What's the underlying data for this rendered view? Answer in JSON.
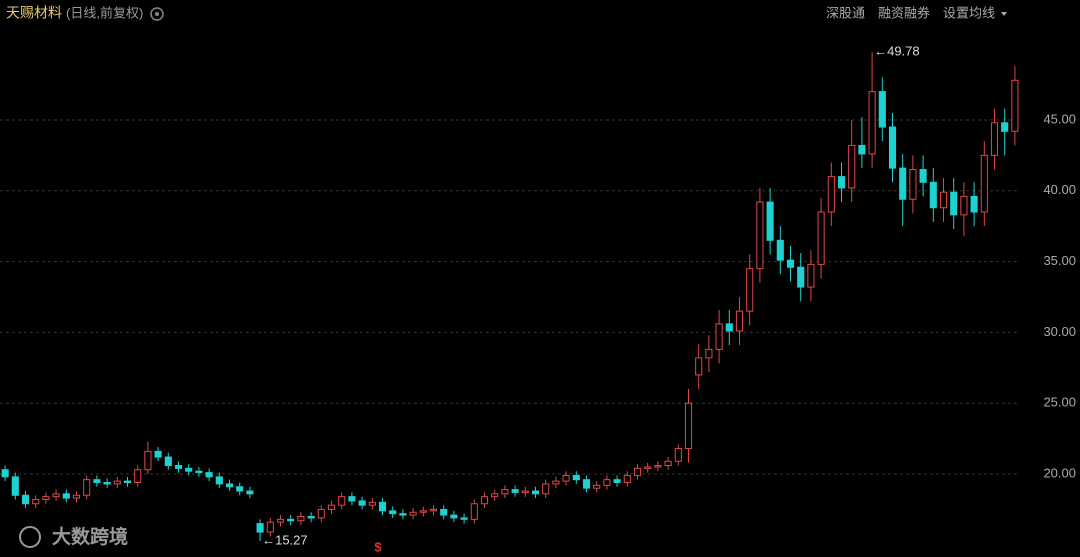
{
  "header": {
    "title": "天赐材料",
    "subtitle": "(日线,前复权)",
    "menu": [
      "深股通",
      "融资融券",
      "设置均线"
    ]
  },
  "watermark": "大数跨境",
  "bottom_marker": "$",
  "chart_data": {
    "type": "candlestick",
    "up_color": "#e04848",
    "down_color": "#1fd1d1",
    "ylim": [
      14.14,
      53.47
    ],
    "yticks": [
      {
        "value": 20,
        "label": "20.00"
      },
      {
        "value": 25,
        "label": "25.00"
      },
      {
        "value": 30,
        "label": "30.00"
      },
      {
        "value": 35,
        "label": "35.00"
      },
      {
        "value": 40,
        "label": "40.00"
      },
      {
        "value": 45,
        "label": "45.00"
      }
    ],
    "grid": true,
    "max_label": "←49.78",
    "min_label": "←15.27",
    "open": [
      20.3,
      19.8,
      18.5,
      17.9,
      18.2,
      18.4,
      18.6,
      18.3,
      18.5,
      19.6,
      19.4,
      19.3,
      19.5,
      19.4,
      20.3,
      21.6,
      21.2,
      20.6,
      20.4,
      20.2,
      20.1,
      19.8,
      19.3,
      19.1,
      18.8,
      16.5,
      15.9,
      16.6,
      16.8,
      16.7,
      17.0,
      16.9,
      17.5,
      17.8,
      18.4,
      18.1,
      17.8,
      18.0,
      17.4,
      17.2,
      17.1,
      17.3,
      17.4,
      17.5,
      17.1,
      16.9,
      16.8,
      17.9,
      18.4,
      18.6,
      18.9,
      18.7,
      18.8,
      18.6,
      19.3,
      19.5,
      19.9,
      19.6,
      19.0,
      19.2,
      19.6,
      19.4,
      19.9,
      20.4,
      20.5,
      20.6,
      20.9,
      21.8,
      27.0,
      28.2,
      28.8,
      30.6,
      30.1,
      31.5,
      34.5,
      39.2,
      36.5,
      35.1,
      34.6,
      33.2,
      34.8,
      38.5,
      41.0,
      40.2,
      43.2,
      42.6,
      47.0,
      44.5,
      41.6,
      39.4,
      41.5,
      40.6,
      38.8,
      39.9,
      38.3,
      39.6,
      38.5,
      42.5,
      44.8,
      44.2
    ],
    "high": [
      20.6,
      20.1,
      18.8,
      18.5,
      18.7,
      18.9,
      18.9,
      18.8,
      19.9,
      19.9,
      19.7,
      19.8,
      19.8,
      20.6,
      22.3,
      21.9,
      21.5,
      20.9,
      20.7,
      20.5,
      20.4,
      20.1,
      19.6,
      19.4,
      19.1,
      16.8,
      16.9,
      17.1,
      17.1,
      17.3,
      17.3,
      17.8,
      18.1,
      18.7,
      18.7,
      18.4,
      18.3,
      18.3,
      17.7,
      17.5,
      17.6,
      17.7,
      17.8,
      17.8,
      17.4,
      17.2,
      18.2,
      18.7,
      18.9,
      19.2,
      19.2,
      19.1,
      19.1,
      19.6,
      19.8,
      20.2,
      20.2,
      19.9,
      19.5,
      19.9,
      19.9,
      20.2,
      20.7,
      20.8,
      20.9,
      21.2,
      22.1,
      26.0,
      29.2,
      29.8,
      31.6,
      31.6,
      32.5,
      35.5,
      40.2,
      40.2,
      37.5,
      36.1,
      35.6,
      35.8,
      39.5,
      42.0,
      42.0,
      45.0,
      45.2,
      49.78,
      48.0,
      45.5,
      42.6,
      42.5,
      42.5,
      41.6,
      40.9,
      40.9,
      40.6,
      40.6,
      43.5,
      45.8,
      45.8,
      48.8
    ],
    "low": [
      19.5,
      18.2,
      17.6,
      17.6,
      17.9,
      18.1,
      18.0,
      18.0,
      18.2,
      19.1,
      19.0,
      19.0,
      19.1,
      19.1,
      20.0,
      20.9,
      20.3,
      20.1,
      19.9,
      19.8,
      19.5,
      19.0,
      18.8,
      18.5,
      18.3,
      15.27,
      15.6,
      16.3,
      16.4,
      16.4,
      16.6,
      16.6,
      17.2,
      17.5,
      17.8,
      17.5,
      17.5,
      17.1,
      16.9,
      16.8,
      16.8,
      17.0,
      17.1,
      16.8,
      16.6,
      16.5,
      16.5,
      17.6,
      18.1,
      18.3,
      18.4,
      18.4,
      18.3,
      18.3,
      19.0,
      19.2,
      19.3,
      18.7,
      18.7,
      18.9,
      19.1,
      19.1,
      19.6,
      20.1,
      20.2,
      20.3,
      20.6,
      20.8,
      26.0,
      27.2,
      27.8,
      29.1,
      29.1,
      30.5,
      33.5,
      35.5,
      34.1,
      33.6,
      32.2,
      32.2,
      33.8,
      37.5,
      39.2,
      39.2,
      41.6,
      41.6,
      43.5,
      40.6,
      37.5,
      38.4,
      39.6,
      37.8,
      37.8,
      37.3,
      36.8,
      37.5,
      37.5,
      41.5,
      42.5,
      43.2
    ],
    "close": [
      19.8,
      18.5,
      17.9,
      18.2,
      18.4,
      18.6,
      18.3,
      18.5,
      19.6,
      19.4,
      19.3,
      19.5,
      19.4,
      20.3,
      21.6,
      21.2,
      20.6,
      20.4,
      20.2,
      20.1,
      19.8,
      19.3,
      19.1,
      18.8,
      18.6,
      15.9,
      16.6,
      16.8,
      16.7,
      17.0,
      16.9,
      17.5,
      17.8,
      18.4,
      18.1,
      17.8,
      18.0,
      17.4,
      17.2,
      17.1,
      17.3,
      17.4,
      17.5,
      17.1,
      16.9,
      16.8,
      17.9,
      18.4,
      18.6,
      18.9,
      18.7,
      18.8,
      18.6,
      19.3,
      19.5,
      19.9,
      19.6,
      19.0,
      19.2,
      19.6,
      19.4,
      19.9,
      20.4,
      20.5,
      20.6,
      20.9,
      21.8,
      25.0,
      28.2,
      28.8,
      30.6,
      30.1,
      31.5,
      34.5,
      39.2,
      36.5,
      35.1,
      34.6,
      33.2,
      34.8,
      38.5,
      41.0,
      40.2,
      43.2,
      42.6,
      47.0,
      44.5,
      41.6,
      39.4,
      41.5,
      40.6,
      38.8,
      39.9,
      38.3,
      39.6,
      38.5,
      42.5,
      44.8,
      44.2,
      47.8
    ]
  }
}
